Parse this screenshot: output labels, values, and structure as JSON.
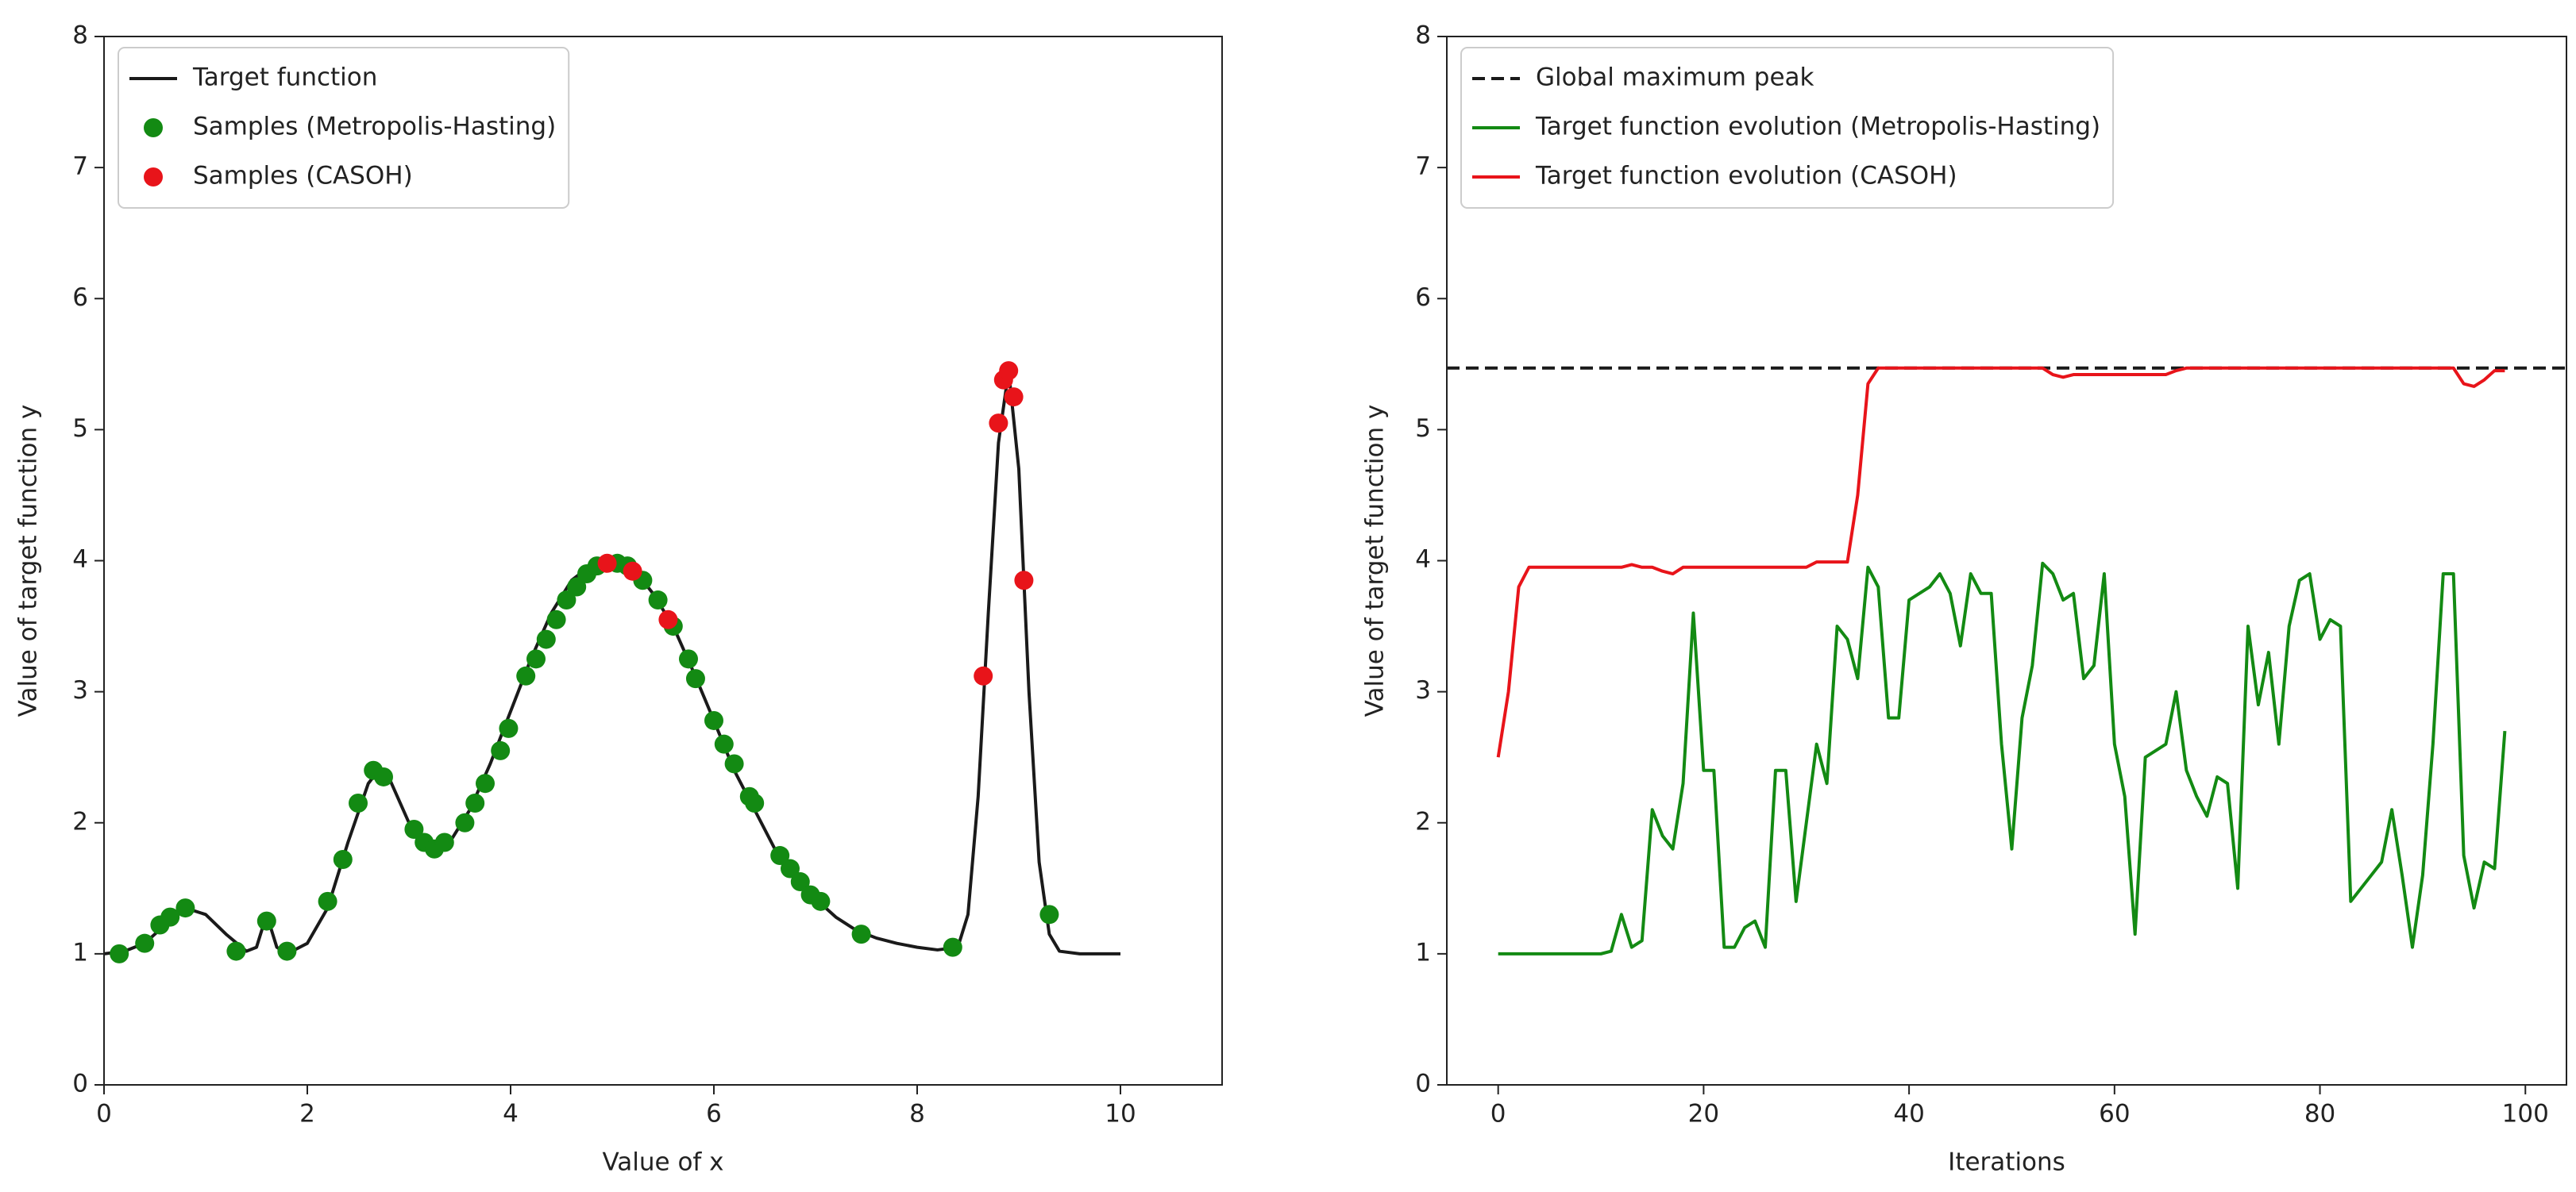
{
  "chart_data": [
    {
      "type": "line",
      "xlabel": "Value of x",
      "ylabel": "Value of target function y",
      "xlim": [
        0,
        11
      ],
      "ylim": [
        0,
        8
      ],
      "xticks": [
        0,
        2,
        4,
        6,
        8,
        10
      ],
      "yticks": [
        0,
        1,
        2,
        3,
        4,
        5,
        6,
        7,
        8
      ],
      "legend": "upper left",
      "series": [
        {
          "name": "Target function",
          "kind": "line",
          "color": "#1a1a1a",
          "x": [
            0,
            0.2,
            0.4,
            0.6,
            0.8,
            1.0,
            1.2,
            1.4,
            1.5,
            1.6,
            1.7,
            1.8,
            2.0,
            2.2,
            2.4,
            2.6,
            2.7,
            2.8,
            3.0,
            3.2,
            3.4,
            3.6,
            3.8,
            4.0,
            4.2,
            4.4,
            4.6,
            4.8,
            5.0,
            5.2,
            5.4,
            5.6,
            5.8,
            6.0,
            6.2,
            6.4,
            6.6,
            6.8,
            7.0,
            7.2,
            7.4,
            7.6,
            7.8,
            8.0,
            8.2,
            8.4,
            8.5,
            8.6,
            8.7,
            8.8,
            8.9,
            9.0,
            9.1,
            9.2,
            9.3,
            9.4,
            9.6,
            10.0
          ],
          "values": [
            1.0,
            1.02,
            1.08,
            1.22,
            1.35,
            1.3,
            1.15,
            1.02,
            1.05,
            1.3,
            1.05,
            1.0,
            1.08,
            1.35,
            1.85,
            2.3,
            2.4,
            2.35,
            2.0,
            1.82,
            1.85,
            2.1,
            2.45,
            2.85,
            3.25,
            3.6,
            3.85,
            3.97,
            4.0,
            3.95,
            3.75,
            3.5,
            3.15,
            2.78,
            2.4,
            2.1,
            1.8,
            1.6,
            1.42,
            1.28,
            1.18,
            1.12,
            1.08,
            1.05,
            1.03,
            1.05,
            1.3,
            2.2,
            3.6,
            4.9,
            5.45,
            4.7,
            3.0,
            1.7,
            1.15,
            1.02,
            1.0,
            1.0
          ]
        },
        {
          "name": "Samples (Metropolis-Hasting)",
          "kind": "scatter",
          "color": "#138a13",
          "x": [
            0.15,
            0.4,
            0.55,
            0.65,
            0.8,
            1.3,
            1.6,
            1.8,
            2.2,
            2.35,
            2.5,
            2.65,
            2.75,
            3.05,
            3.15,
            3.25,
            3.35,
            3.55,
            3.65,
            3.75,
            3.9,
            3.98,
            4.15,
            4.25,
            4.35,
            4.45,
            4.55,
            4.65,
            4.75,
            4.85,
            5.05,
            5.15,
            5.3,
            5.45,
            5.6,
            5.75,
            5.82,
            6.0,
            6.1,
            6.2,
            6.35,
            6.4,
            6.65,
            6.75,
            6.85,
            6.95,
            7.05,
            7.45,
            8.35,
            9.3
          ],
          "values": [
            1.0,
            1.08,
            1.22,
            1.28,
            1.35,
            1.02,
            1.25,
            1.02,
            1.4,
            1.72,
            2.15,
            2.4,
            2.35,
            1.95,
            1.85,
            1.8,
            1.85,
            2.0,
            2.15,
            2.3,
            2.55,
            2.72,
            3.12,
            3.25,
            3.4,
            3.55,
            3.7,
            3.8,
            3.9,
            3.96,
            3.98,
            3.96,
            3.85,
            3.7,
            3.5,
            3.25,
            3.1,
            2.78,
            2.6,
            2.45,
            2.2,
            2.15,
            1.75,
            1.65,
            1.55,
            1.45,
            1.4,
            1.15,
            1.05,
            1.3
          ]
        },
        {
          "name": "Samples (CASOH)",
          "kind": "scatter",
          "color": "#e8141a",
          "x": [
            4.95,
            5.2,
            5.55,
            8.65,
            8.8,
            8.85,
            8.9,
            8.95,
            9.05
          ],
          "values": [
            3.98,
            3.92,
            3.55,
            3.12,
            5.05,
            5.38,
            5.45,
            5.25,
            3.85
          ]
        }
      ]
    },
    {
      "type": "line",
      "xlabel": "Iterations",
      "ylabel": "Value of target function y",
      "xlim": [
        -5,
        104
      ],
      "ylim": [
        0,
        8
      ],
      "xticks": [
        0,
        20,
        40,
        60,
        80,
        100
      ],
      "yticks": [
        0,
        1,
        2,
        3,
        4,
        5,
        6,
        7,
        8
      ],
      "legend": "upper left",
      "series": [
        {
          "name": "Global maximum peak",
          "kind": "hline",
          "linestyle": "dashed",
          "color": "#1a1a1a",
          "y": 5.47
        },
        {
          "name": "Target function evolution (Metropolis-Hasting)",
          "kind": "line",
          "color": "#138a13",
          "x": [
            0,
            1,
            2,
            3,
            4,
            5,
            6,
            7,
            8,
            9,
            10,
            11,
            12,
            13,
            14,
            15,
            16,
            17,
            18,
            19,
            20,
            21,
            22,
            23,
            24,
            25,
            26,
            27,
            28,
            29,
            30,
            31,
            32,
            33,
            34,
            35,
            36,
            37,
            38,
            39,
            40,
            41,
            42,
            43,
            44,
            45,
            46,
            47,
            48,
            49,
            50,
            51,
            52,
            53,
            54,
            55,
            56,
            57,
            58,
            59,
            60,
            61,
            62,
            63,
            64,
            65,
            66,
            67,
            68,
            69,
            70,
            71,
            72,
            73,
            74,
            75,
            76,
            77,
            78,
            79,
            80,
            81,
            82,
            83,
            84,
            85,
            86,
            87,
            88,
            89,
            90,
            91,
            92,
            93,
            94,
            95,
            96,
            97,
            98
          ],
          "values": [
            1.0,
            1.0,
            1.0,
            1.0,
            1.0,
            1.0,
            1.0,
            1.0,
            1.0,
            1.0,
            1.0,
            1.02,
            1.3,
            1.05,
            1.1,
            2.1,
            1.9,
            1.8,
            2.3,
            3.6,
            2.4,
            2.4,
            1.05,
            1.05,
            1.2,
            1.25,
            1.05,
            2.4,
            2.4,
            1.4,
            2.0,
            2.6,
            2.3,
            3.5,
            3.4,
            3.1,
            3.95,
            3.8,
            2.8,
            2.8,
            3.7,
            3.75,
            3.8,
            3.9,
            3.75,
            3.35,
            3.9,
            3.75,
            3.75,
            2.6,
            1.8,
            2.8,
            3.2,
            3.98,
            3.9,
            3.7,
            3.75,
            3.1,
            3.2,
            3.9,
            2.6,
            2.2,
            1.15,
            2.5,
            2.55,
            2.6,
            3.0,
            2.4,
            2.2,
            2.05,
            2.35,
            2.3,
            1.5,
            3.5,
            2.9,
            3.3,
            2.6,
            3.5,
            3.85,
            3.9,
            3.4,
            3.55,
            3.5,
            1.4,
            1.5,
            1.6,
            1.7,
            2.1,
            1.6,
            1.05,
            1.6,
            2.6,
            3.9,
            3.9,
            1.75,
            1.35,
            1.7,
            1.65,
            2.7
          ]
        },
        {
          "name": "Target function evolution (CASOH)",
          "kind": "line",
          "color": "#e8141a",
          "x": [
            0,
            1,
            2,
            3,
            4,
            5,
            6,
            7,
            8,
            9,
            10,
            11,
            12,
            13,
            14,
            15,
            16,
            17,
            18,
            19,
            20,
            21,
            22,
            23,
            24,
            25,
            26,
            27,
            28,
            29,
            30,
            31,
            32,
            33,
            34,
            35,
            36,
            37,
            38,
            39,
            40,
            41,
            42,
            43,
            44,
            45,
            46,
            47,
            48,
            49,
            50,
            51,
            52,
            53,
            54,
            55,
            56,
            57,
            58,
            59,
            60,
            61,
            62,
            63,
            64,
            65,
            66,
            67,
            68,
            69,
            70,
            71,
            72,
            73,
            74,
            75,
            76,
            77,
            78,
            79,
            80,
            81,
            82,
            83,
            84,
            85,
            86,
            87,
            88,
            89,
            90,
            91,
            92,
            93,
            94,
            95,
            96,
            97,
            98
          ],
          "values": [
            2.5,
            3.0,
            3.8,
            3.95,
            3.95,
            3.95,
            3.95,
            3.95,
            3.95,
            3.95,
            3.95,
            3.95,
            3.95,
            3.97,
            3.95,
            3.95,
            3.92,
            3.9,
            3.95,
            3.95,
            3.95,
            3.95,
            3.95,
            3.95,
            3.95,
            3.95,
            3.95,
            3.95,
            3.95,
            3.95,
            3.95,
            3.99,
            3.99,
            3.99,
            3.99,
            4.5,
            5.35,
            5.47,
            5.47,
            5.47,
            5.47,
            5.47,
            5.47,
            5.47,
            5.47,
            5.47,
            5.47,
            5.47,
            5.47,
            5.47,
            5.47,
            5.47,
            5.47,
            5.47,
            5.42,
            5.4,
            5.42,
            5.42,
            5.42,
            5.42,
            5.42,
            5.42,
            5.42,
            5.42,
            5.42,
            5.42,
            5.45,
            5.47,
            5.47,
            5.47,
            5.47,
            5.47,
            5.47,
            5.47,
            5.47,
            5.47,
            5.47,
            5.47,
            5.47,
            5.47,
            5.47,
            5.47,
            5.47,
            5.47,
            5.47,
            5.47,
            5.47,
            5.47,
            5.47,
            5.47,
            5.47,
            5.47,
            5.47,
            5.47,
            5.35,
            5.33,
            5.38,
            5.45,
            5.45
          ]
        }
      ]
    }
  ]
}
